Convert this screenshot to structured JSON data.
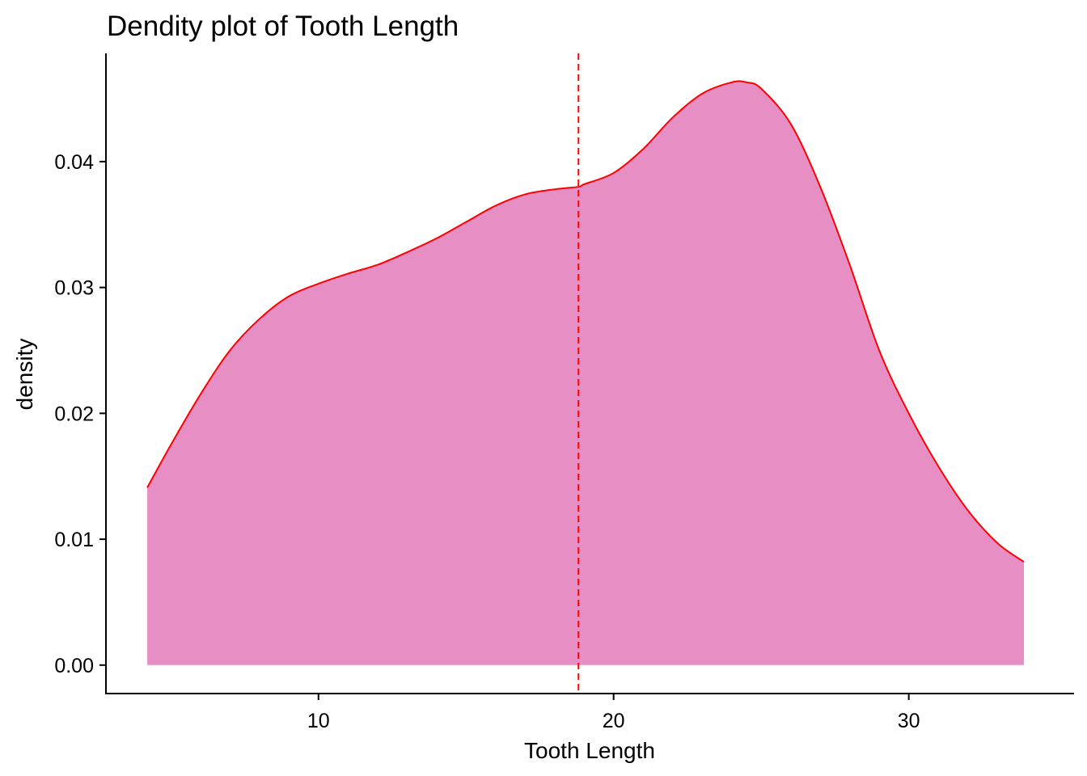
{
  "chart_data": {
    "type": "area",
    "title": "Dendity plot of Tooth Length",
    "xlabel": "Tooth Length",
    "ylabel": "density",
    "xlim": [
      2.8,
      35.6
    ],
    "ylim": [
      -0.00226,
      0.0486
    ],
    "x_ticks": [
      10,
      20,
      30
    ],
    "y_ticks": [
      0.0,
      0.01,
      0.02,
      0.03,
      0.04
    ],
    "x_tick_labels": [
      "10",
      "20",
      "30"
    ],
    "y_tick_labels": [
      "0.00",
      "0.01",
      "0.02",
      "0.03",
      "0.04"
    ],
    "grid": false,
    "legend": "none",
    "fill_color": "#e78ec5",
    "line_color": "#ff0000",
    "mean_line": {
      "x": 18.81,
      "color": "#ff0000",
      "style": "dashed"
    },
    "series": [
      {
        "x": [
          4.2,
          5,
          6,
          7,
          8,
          9,
          10,
          11,
          12,
          13,
          14,
          15,
          16,
          17,
          18,
          18.81,
          19,
          20,
          21,
          22,
          23,
          24,
          24.5,
          25,
          26,
          27,
          28,
          29,
          30,
          31,
          32,
          33,
          33.9
        ],
        "y": [
          0.0141,
          0.0175,
          0.0215,
          0.025,
          0.0275,
          0.0293,
          0.0303,
          0.0311,
          0.0318,
          0.0328,
          0.0339,
          0.0352,
          0.0365,
          0.0374,
          0.0378,
          0.038,
          0.0382,
          0.0391,
          0.041,
          0.0435,
          0.0454,
          0.0463,
          0.0463,
          0.0458,
          0.043,
          0.038,
          0.0318,
          0.025,
          0.02,
          0.0158,
          0.0123,
          0.0097,
          0.0082
        ]
      }
    ]
  }
}
